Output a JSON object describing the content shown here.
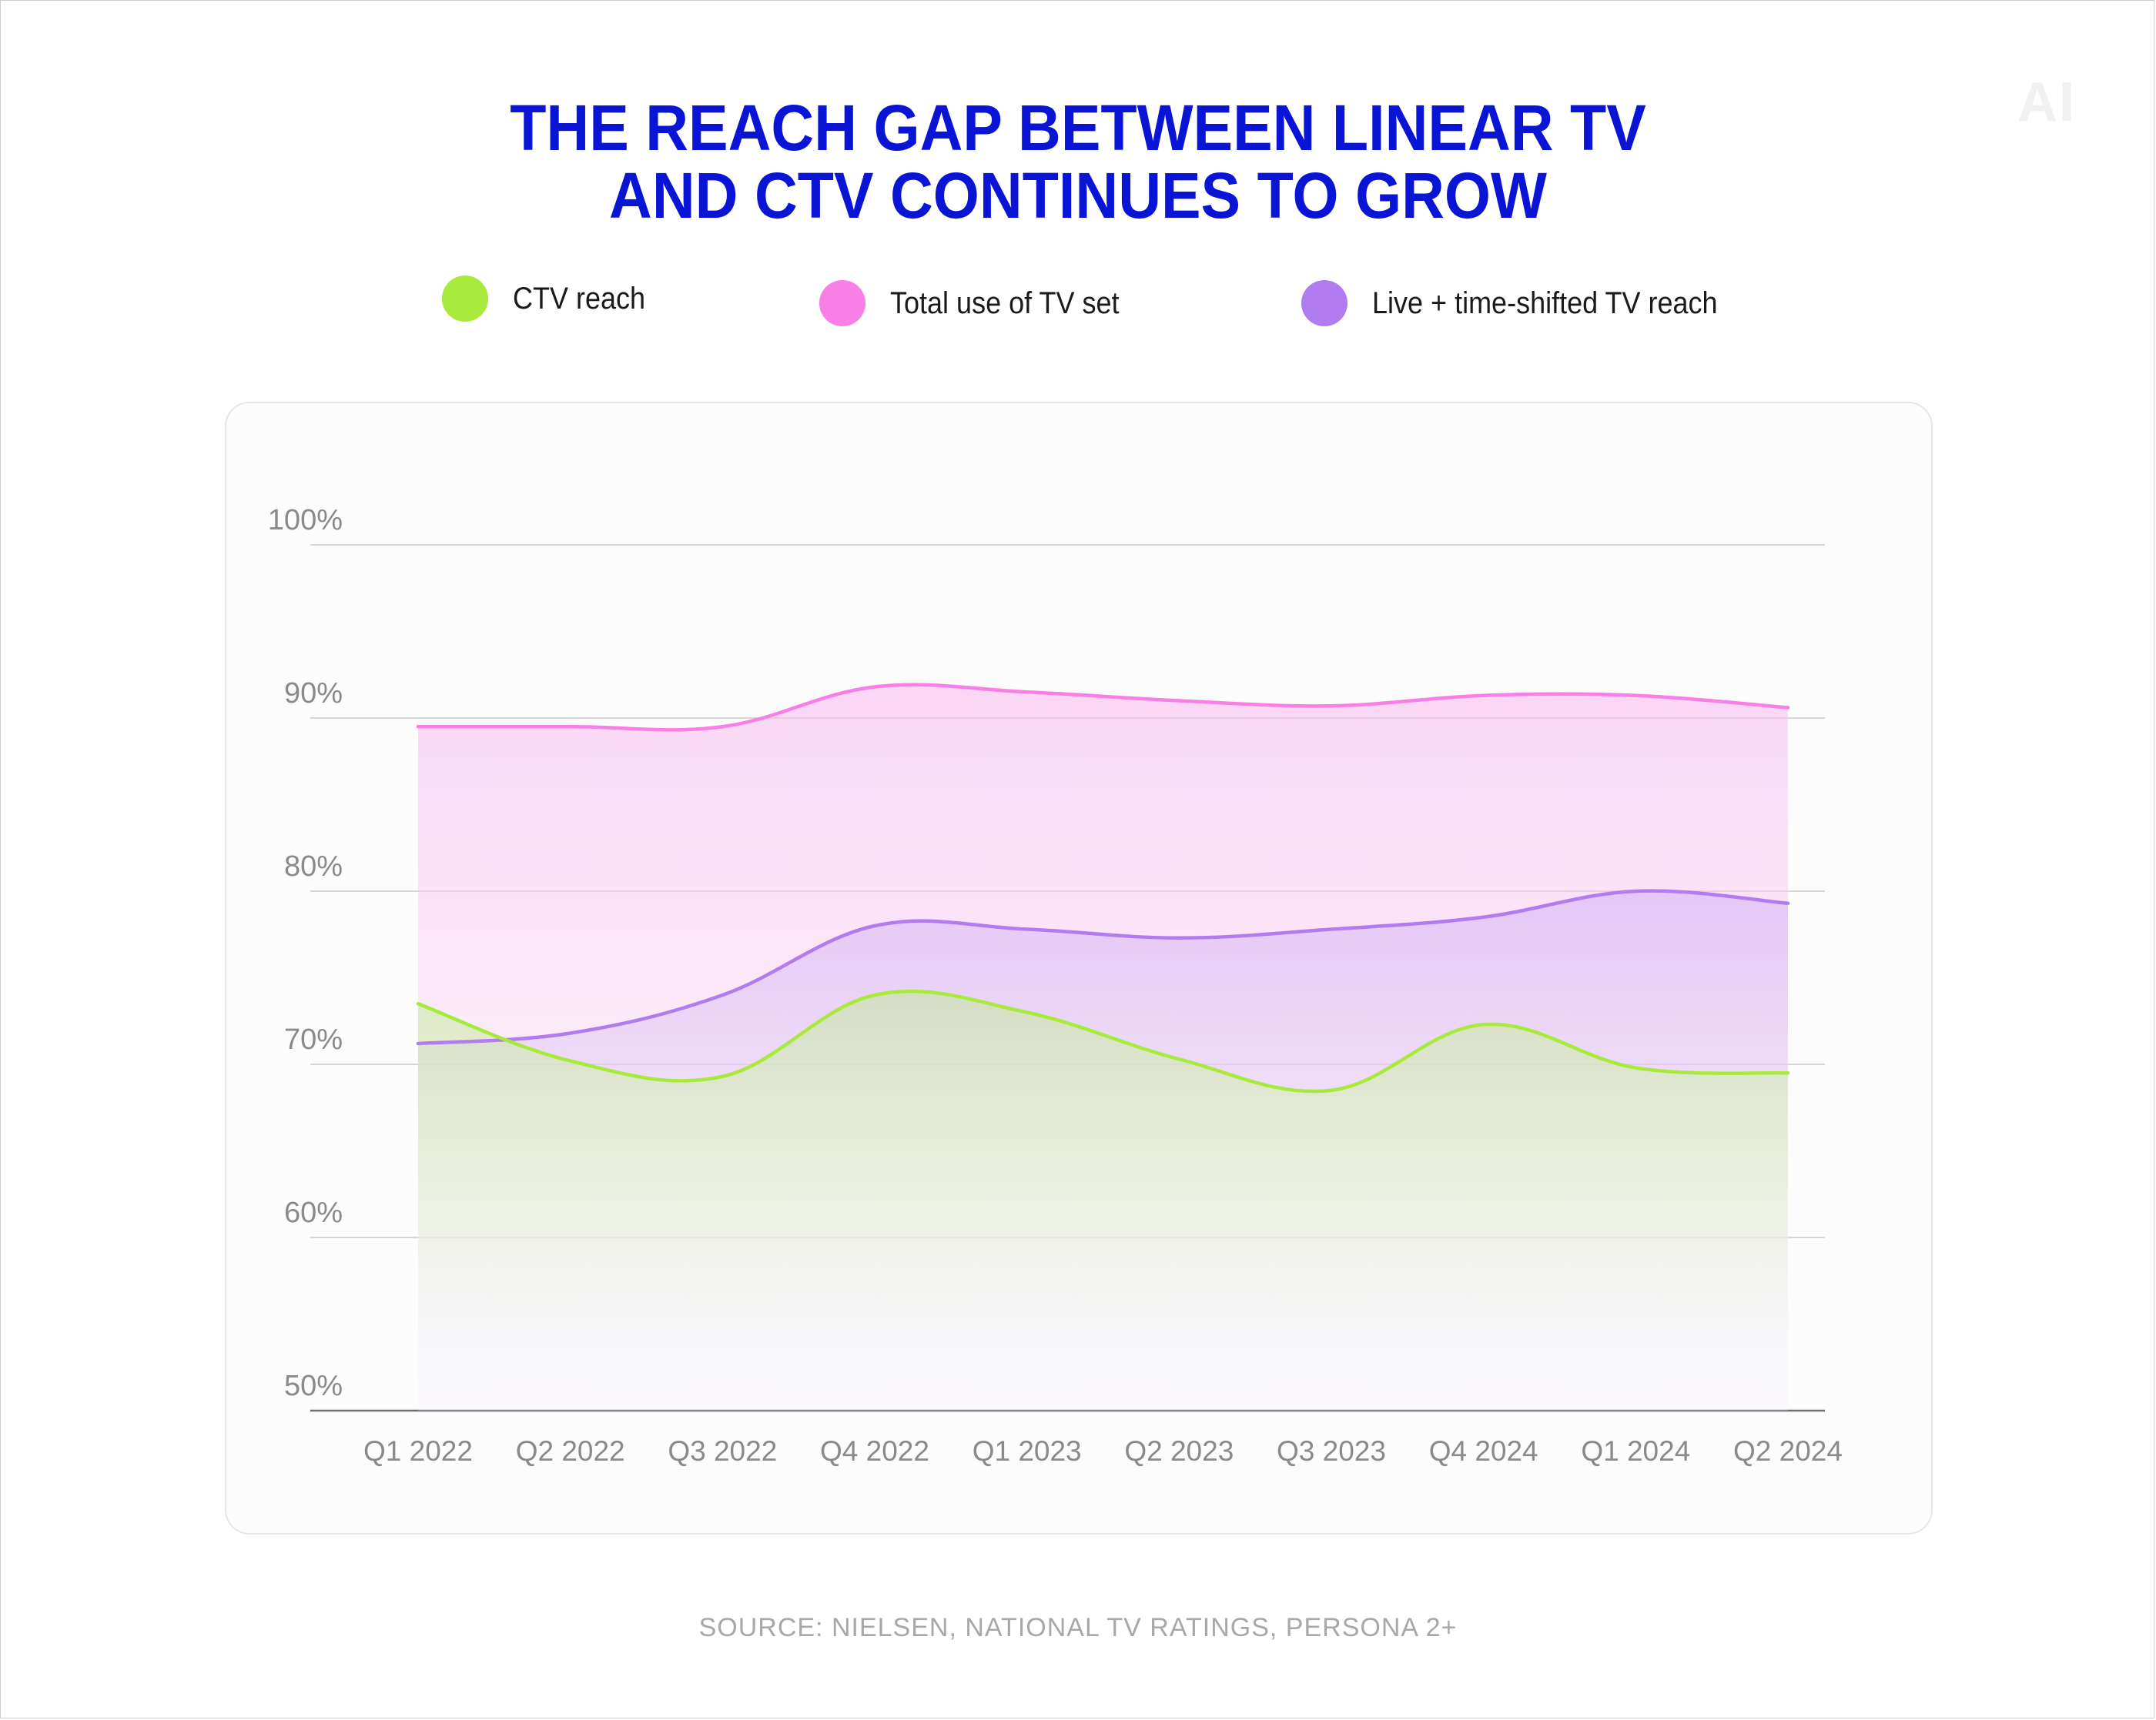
{
  "title_lines": [
    "THE REACH GAP BETWEEN LINEAR TV",
    "AND CTV CONTINUES TO GROW"
  ],
  "logo": "AI",
  "source": "SOURCE: NIELSEN, NATIONAL TV RATINGS, PERSONA 2+",
  "colors": {
    "title": "#0a14d4",
    "ctv": "#a8ea3c",
    "total": "#f77fe6",
    "live": "#b07cf0"
  },
  "chart_data": {
    "type": "area",
    "categories": [
      "Q1 2022",
      "Q2 2022",
      "Q3 2022",
      "Q4 2022",
      "Q1 2023",
      "Q2 2023",
      "Q3 2023",
      "Q4 2024",
      "Q1 2024",
      "Q2 2024"
    ],
    "series": [
      {
        "name": "Total use of TV set",
        "color": "#f77fe6",
        "values": [
          89.5,
          89.5,
          89.5,
          91.8,
          91.5,
          91.0,
          90.7,
          91.3,
          91.3,
          90.6
        ]
      },
      {
        "name": "Live + time-shifted TV reach",
        "color": "#b07cf0",
        "values": [
          71.2,
          71.8,
          74.0,
          78.0,
          77.8,
          77.3,
          77.8,
          78.5,
          80.0,
          79.3
        ]
      },
      {
        "name": "CTV reach",
        "color": "#a8ea3c",
        "values": [
          73.5,
          70.2,
          69.3,
          74.0,
          73.0,
          70.3,
          68.5,
          72.3,
          69.8,
          69.5
        ]
      }
    ],
    "y_ticks": [
      {
        "value": 100,
        "label": "100%"
      },
      {
        "value": 90,
        "label": "90%"
      },
      {
        "value": 80,
        "label": "80%"
      },
      {
        "value": 70,
        "label": "70%"
      },
      {
        "value": 60,
        "label": "60%"
      },
      {
        "value": 50,
        "label": "50%"
      }
    ],
    "ylim": [
      50,
      100
    ],
    "grid": true,
    "legend_position": "top"
  }
}
